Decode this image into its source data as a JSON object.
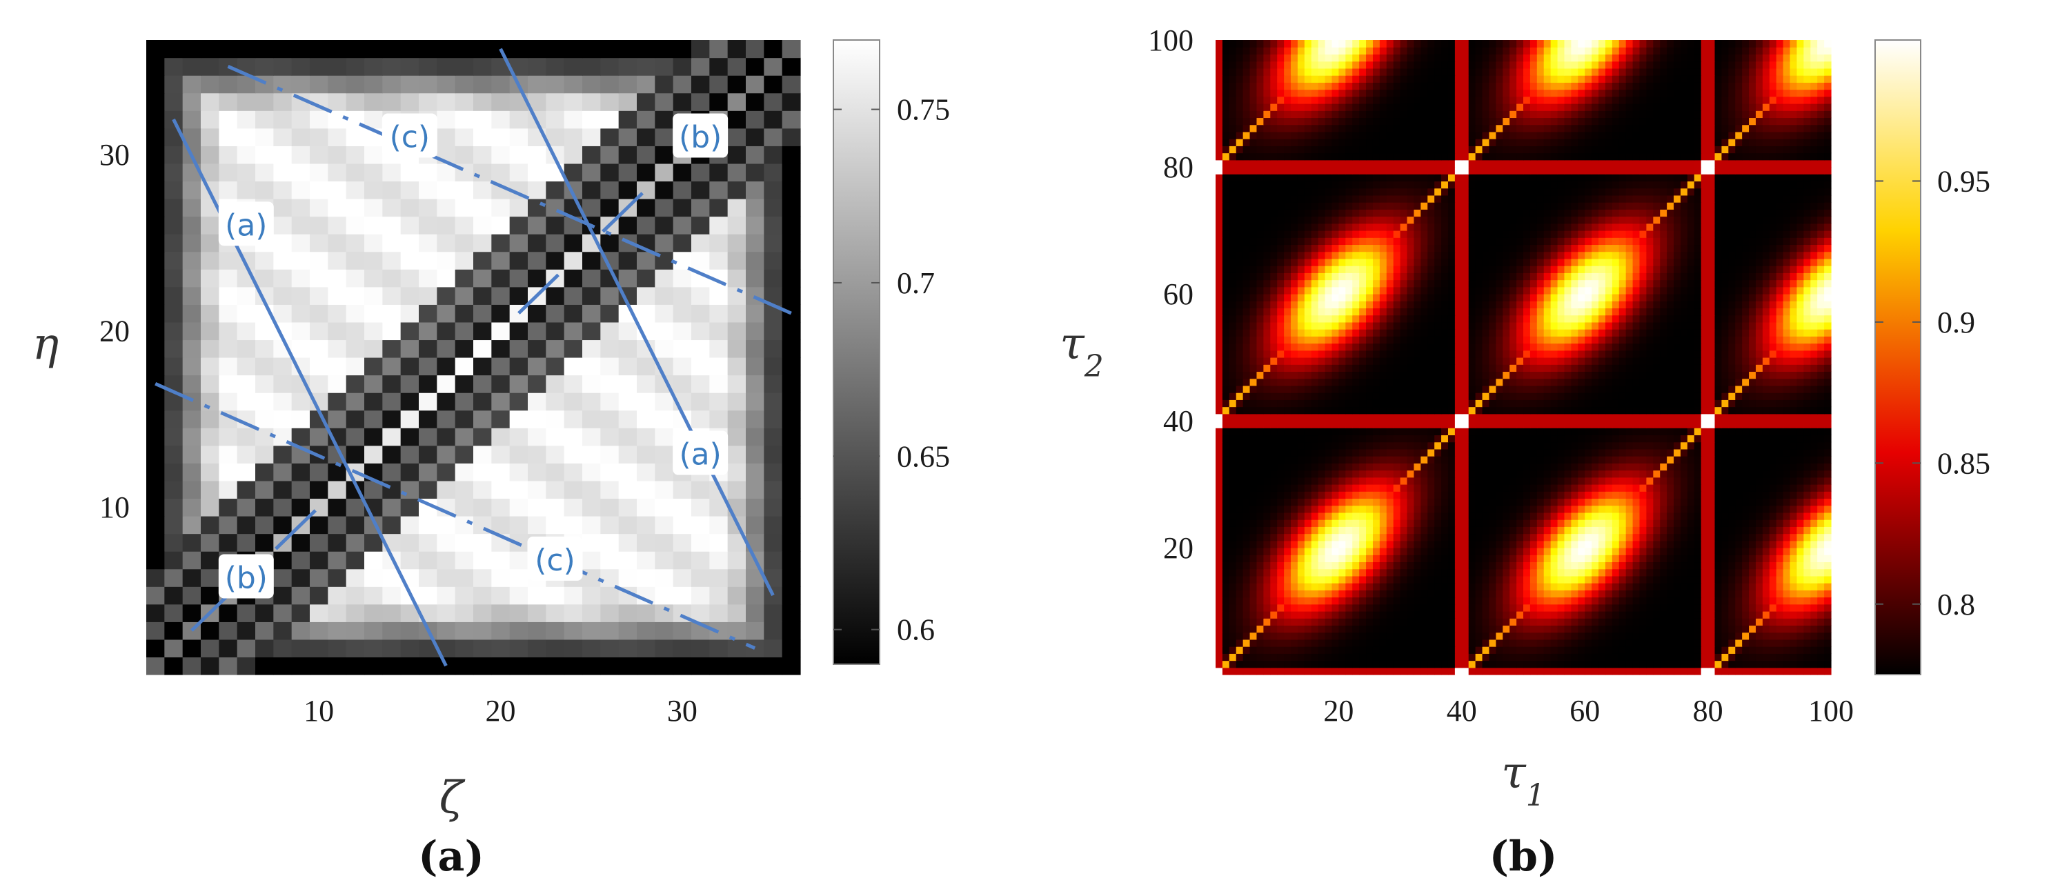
{
  "chart_data": [
    {
      "type": "heatmap",
      "panel_label": "(a)",
      "xlabel": "ζ",
      "ylabel": "η",
      "xlim": [
        1,
        36
      ],
      "ylim": [
        1,
        36
      ],
      "grid_size": 36,
      "xticks": [
        10,
        20,
        30
      ],
      "yticks": [
        10,
        20,
        30
      ],
      "colormap": "gray",
      "colorbar": {
        "range": [
          0.59,
          0.77
        ],
        "ticks": [
          "0.75",
          "0.7",
          "0.65",
          "0.6"
        ],
        "tick_values": [
          0.75,
          0.7,
          0.65,
          0.6
        ]
      },
      "annotations": {
        "solid_lines": [
          {
            "label": "(a)",
            "from": [
              2,
              32
            ],
            "to": [
              17,
              1
            ]
          },
          {
            "label": "(a)",
            "from": [
              20,
              36
            ],
            "to": [
              35,
              5
            ]
          }
        ],
        "dashed_lines": [
          {
            "label": "(b)",
            "from": [
              3,
              3
            ],
            "to": [
              12,
              12
            ]
          },
          {
            "label": "(b)",
            "from": [
              21,
              21
            ],
            "to": [
              32,
              32
            ]
          }
        ],
        "dash_dot_lines": [
          {
            "label": "(c)",
            "from": [
              1,
              17
            ],
            "to": [
              34,
              2
            ]
          },
          {
            "label": "(c)",
            "from": [
              5,
              35
            ],
            "to": [
              36,
              21
            ]
          }
        ],
        "text_boxes": [
          {
            "text": "(a)",
            "at": [
              6,
              26
            ]
          },
          {
            "text": "(b)",
            "at": [
              6,
              6
            ]
          },
          {
            "text": "(c)",
            "at": [
              15,
              31
            ]
          },
          {
            "text": "(b)",
            "at": [
              31,
              31
            ]
          },
          {
            "text": "(a)",
            "at": [
              31,
              13
            ]
          },
          {
            "text": "(c)",
            "at": [
              23,
              7
            ]
          }
        ]
      }
    },
    {
      "type": "heatmap",
      "panel_label": "(b)",
      "xlabel": "τ1",
      "ylabel": "τ2",
      "xlim": [
        0,
        100
      ],
      "ylim": [
        0,
        100
      ],
      "xticks": [
        20,
        40,
        60,
        80,
        100
      ],
      "yticks": [
        20,
        40,
        60,
        80,
        100
      ],
      "colormap": "hot",
      "period": 40,
      "colorbar": {
        "range": [
          0.775,
          1.0
        ],
        "ticks": [
          "0.95",
          "0.9",
          "0.85",
          "0.8"
        ],
        "tick_values": [
          0.95,
          0.9,
          0.85,
          0.8
        ]
      }
    }
  ]
}
